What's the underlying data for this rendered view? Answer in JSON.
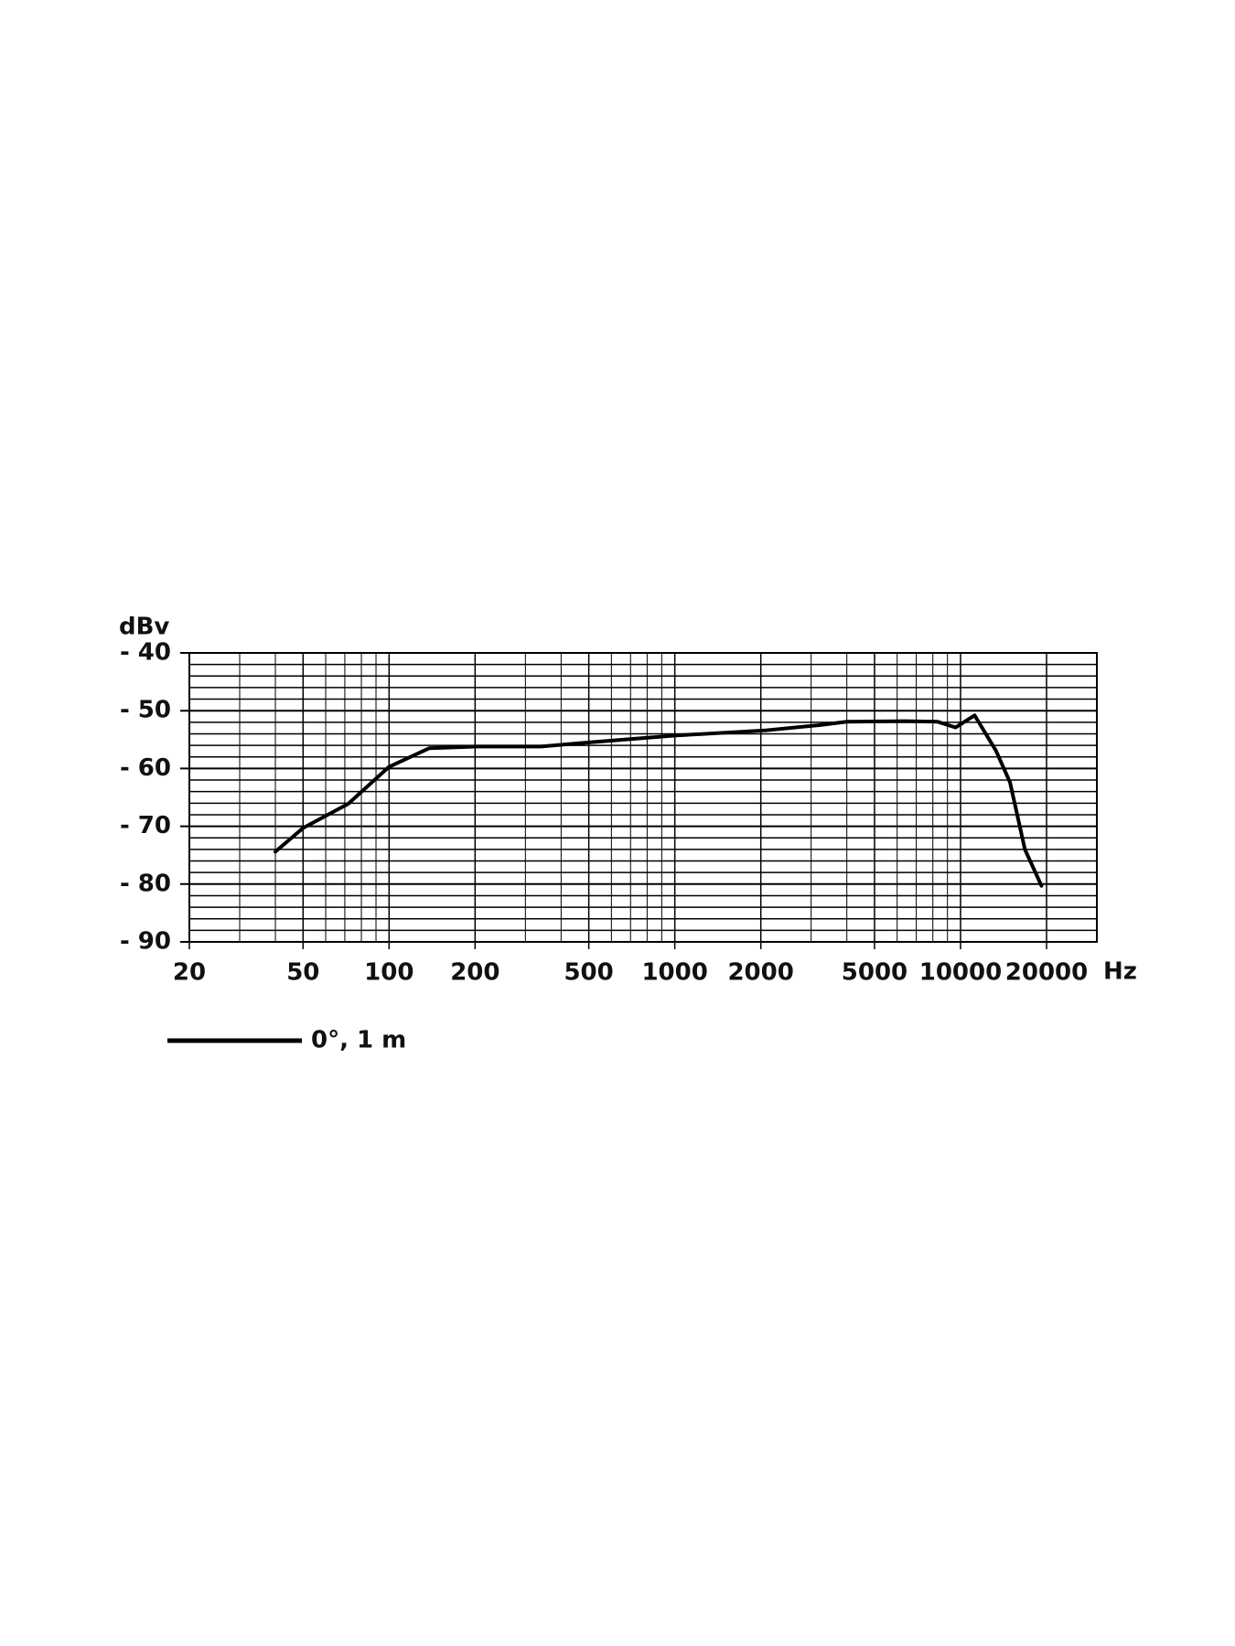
{
  "chart_data": {
    "type": "line",
    "y_label": "dBv",
    "x_label": "Hz",
    "x_scale": "log",
    "xlim": [
      20,
      30000
    ],
    "xticks": [
      20,
      50,
      100,
      200,
      500,
      1000,
      2000,
      5000,
      10000,
      20000
    ],
    "xminorticks": [
      30,
      40,
      60,
      70,
      80,
      90,
      300,
      400,
      600,
      700,
      800,
      900,
      3000,
      4000,
      6000,
      7000,
      8000,
      9000
    ],
    "ylim": [
      -90,
      -40
    ],
    "yticks": [
      {
        "value": -40,
        "label": "- 40"
      },
      {
        "value": -50,
        "label": "- 50"
      },
      {
        "value": -60,
        "label": "- 60"
      },
      {
        "value": -70,
        "label": "- 70"
      },
      {
        "value": -80,
        "label": "- 80"
      },
      {
        "value": -90,
        "label": "- 90"
      }
    ],
    "yminorticks": [
      -88,
      -86,
      -84,
      -82,
      -78,
      -76,
      -74,
      -72,
      -68,
      -66,
      -64,
      -62,
      -58,
      -56,
      -54,
      -52,
      -48,
      -46,
      -44,
      -42
    ],
    "grid": true,
    "x": [
      40,
      50,
      72,
      100,
      138,
      203,
      340,
      524,
      1000,
      2080,
      3200,
      4000,
      6400,
      8300,
      9600,
      11200,
      13300,
      14900,
      16800,
      19200
    ],
    "series": [
      {
        "name": "0°, 1 m",
        "color": "#000000",
        "values": [
          -74.4,
          -70.3,
          -66.1,
          -59.7,
          -56.5,
          -56.2,
          -56.2,
          -55.4,
          -54.3,
          -53.4,
          -52.5,
          -51.9,
          -51.8,
          -51.9,
          -52.9,
          -50.8,
          -56.9,
          -62.4,
          -74.0,
          -80.3
        ]
      }
    ]
  }
}
